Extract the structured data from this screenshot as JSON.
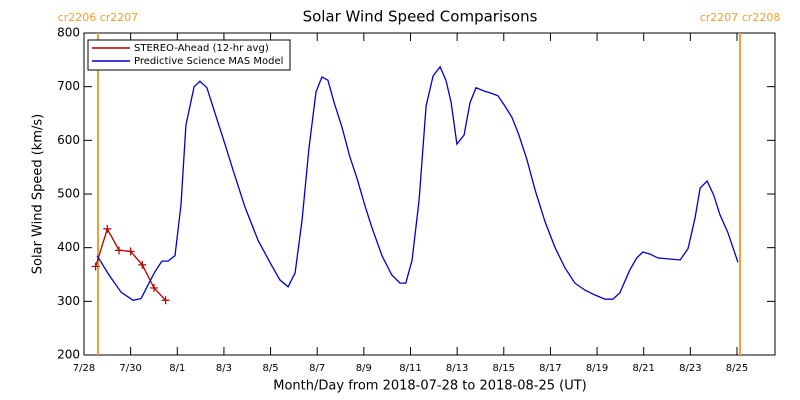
{
  "chart_data": {
    "type": "line",
    "title": "Solar Wind Speed Comparisons",
    "xlabel": "Month/Day from 2018-07-28 to 2018-08-25 (UT)",
    "ylabel": "Solar Wind Speed (km/s)",
    "xlim": [
      0,
      29.63
    ],
    "xticks": [
      {
        "value": 0,
        "label": "7/28"
      },
      {
        "value": 2,
        "label": "7/30"
      },
      {
        "value": 4,
        "label": "8/1"
      },
      {
        "value": 6,
        "label": "8/3"
      },
      {
        "value": 8,
        "label": "8/5"
      },
      {
        "value": 10,
        "label": "8/7"
      },
      {
        "value": 12,
        "label": "8/9"
      },
      {
        "value": 14,
        "label": "8/11"
      },
      {
        "value": 16,
        "label": "8/13"
      },
      {
        "value": 18,
        "label": "8/15"
      },
      {
        "value": 20,
        "label": "8/17"
      },
      {
        "value": 22,
        "label": "8/19"
      },
      {
        "value": 24,
        "label": "8/21"
      },
      {
        "value": 26,
        "label": "8/23"
      },
      {
        "value": 28,
        "label": "8/25"
      }
    ],
    "ylim": [
      200,
      800
    ],
    "yticks": [
      200,
      300,
      400,
      500,
      600,
      700,
      800
    ],
    "legend": "upper left",
    "markers": [
      {
        "x": 0.6,
        "label": "cr2206 cr2207",
        "color": "#f0a030"
      },
      {
        "x": 28.13,
        "label": "cr2207 cr2208",
        "color": "#f0a030"
      }
    ],
    "series": [
      {
        "name": "STEREO-Ahead (12-hr avg)",
        "color": "#b00000",
        "marker": "+",
        "x": [
          0.5,
          1.0,
          1.5,
          2.0,
          2.5,
          3.0,
          3.5
        ],
        "values": [
          365,
          435,
          395,
          393,
          368,
          325,
          302
        ]
      },
      {
        "name": "Predictive Science MAS Model",
        "color": "#0000cc",
        "x": [
          0.56,
          1.07,
          1.59,
          2.1,
          2.45,
          2.74,
          3.04,
          3.34,
          3.6,
          3.9,
          4.16,
          4.37,
          4.72,
          4.97,
          5.27,
          5.6,
          6.05,
          6.39,
          6.9,
          7.46,
          7.98,
          8.4,
          8.75,
          9.05,
          9.35,
          9.65,
          9.95,
          10.2,
          10.46,
          10.72,
          11.06,
          11.4,
          11.7,
          12.05,
          12.35,
          12.78,
          13.2,
          13.55,
          13.8,
          14.07,
          14.37,
          14.67,
          14.97,
          15.27,
          15.52,
          15.74,
          15.99,
          16.3,
          16.55,
          16.81,
          17.15,
          17.45,
          17.75,
          18.05,
          18.35,
          18.65,
          19.0,
          19.34,
          19.77,
          20.2,
          20.63,
          21.05,
          21.48,
          21.9,
          22.34,
          22.68,
          22.98,
          23.4,
          23.7,
          23.97,
          24.27,
          24.6,
          25.04,
          25.56,
          25.9,
          26.2,
          26.42,
          26.72,
          27.0,
          27.27,
          27.6,
          28.04
        ],
        "values": [
          385,
          349,
          317,
          302,
          305,
          330,
          355,
          375,
          375,
          385,
          480,
          628,
          700,
          710,
          698,
          653,
          592,
          545,
          476,
          414,
          372,
          340,
          327,
          353,
          452,
          586,
          690,
          718,
          712,
          671,
          625,
          569,
          530,
          478,
          437,
          385,
          349,
          334,
          334,
          377,
          489,
          664,
          720,
          737,
          712,
          671,
          593,
          610,
          670,
          698,
          692,
          688,
          683,
          664,
          643,
          610,
          563,
          508,
          448,
          400,
          362,
          334,
          321,
          312,
          304,
          304,
          316,
          358,
          381,
          392,
          388,
          381,
          379,
          377,
          398,
          455,
          511,
          524,
          498,
          461,
          429,
          373
        ]
      }
    ]
  }
}
